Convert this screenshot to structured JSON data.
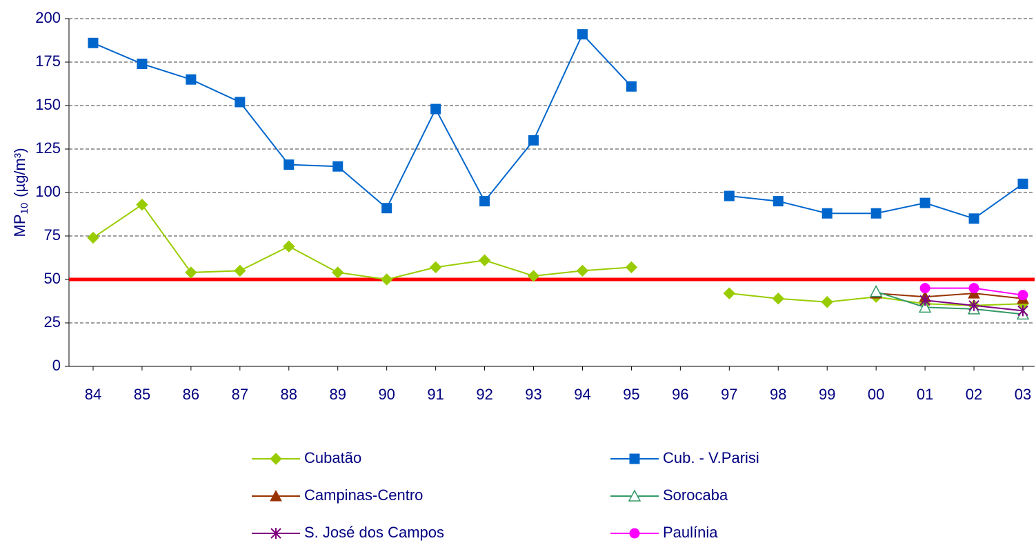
{
  "chart_data": {
    "type": "line",
    "y_label": {
      "main": "MP",
      "sub": "10",
      "unit": "(µg/m³)"
    },
    "categories": [
      "84",
      "85",
      "86",
      "87",
      "88",
      "89",
      "90",
      "91",
      "92",
      "93",
      "94",
      "95",
      "96",
      "97",
      "98",
      "99",
      "00",
      "01",
      "02",
      "03"
    ],
    "ylim": [
      0,
      200
    ],
    "yticks": [
      0,
      25,
      50,
      75,
      100,
      125,
      150,
      175,
      200
    ],
    "grid": true,
    "reference_line": {
      "value": 50,
      "color": "#ff0000"
    },
    "series": [
      {
        "name": "Cubatão",
        "color": "#99cc00",
        "marker": "diamond",
        "values": [
          74,
          93,
          54,
          55,
          69,
          54,
          50,
          57,
          61,
          52,
          55,
          57,
          null,
          42,
          39,
          37,
          40,
          36,
          35,
          36
        ]
      },
      {
        "name": "Cub. - V.Parisi",
        "color": "#0066cc",
        "marker": "square",
        "values": [
          186,
          174,
          165,
          152,
          116,
          115,
          91,
          148,
          95,
          130,
          191,
          161,
          null,
          98,
          95,
          88,
          88,
          94,
          85,
          105
        ]
      },
      {
        "name": "Campinas-Centro",
        "color": "#993300",
        "marker": "triangle",
        "values": [
          null,
          null,
          null,
          null,
          null,
          null,
          null,
          null,
          null,
          null,
          null,
          null,
          null,
          null,
          null,
          null,
          42,
          40,
          42,
          39
        ]
      },
      {
        "name": "Sorocaba",
        "color": "#339966",
        "marker": "open-triangle",
        "values": [
          null,
          null,
          null,
          null,
          null,
          null,
          null,
          null,
          null,
          null,
          null,
          null,
          null,
          null,
          null,
          null,
          43,
          34,
          33,
          30
        ]
      },
      {
        "name": "S. José dos Campos",
        "color": "#800080",
        "marker": "asterisk",
        "values": [
          null,
          null,
          null,
          null,
          null,
          null,
          null,
          null,
          null,
          null,
          null,
          null,
          null,
          null,
          null,
          null,
          null,
          38,
          35,
          32
        ]
      },
      {
        "name": "Paulínia",
        "color": "#ff00ff",
        "marker": "circle",
        "values": [
          null,
          null,
          null,
          null,
          null,
          null,
          null,
          null,
          null,
          null,
          null,
          null,
          null,
          null,
          null,
          null,
          null,
          45,
          45,
          41
        ]
      }
    ]
  }
}
